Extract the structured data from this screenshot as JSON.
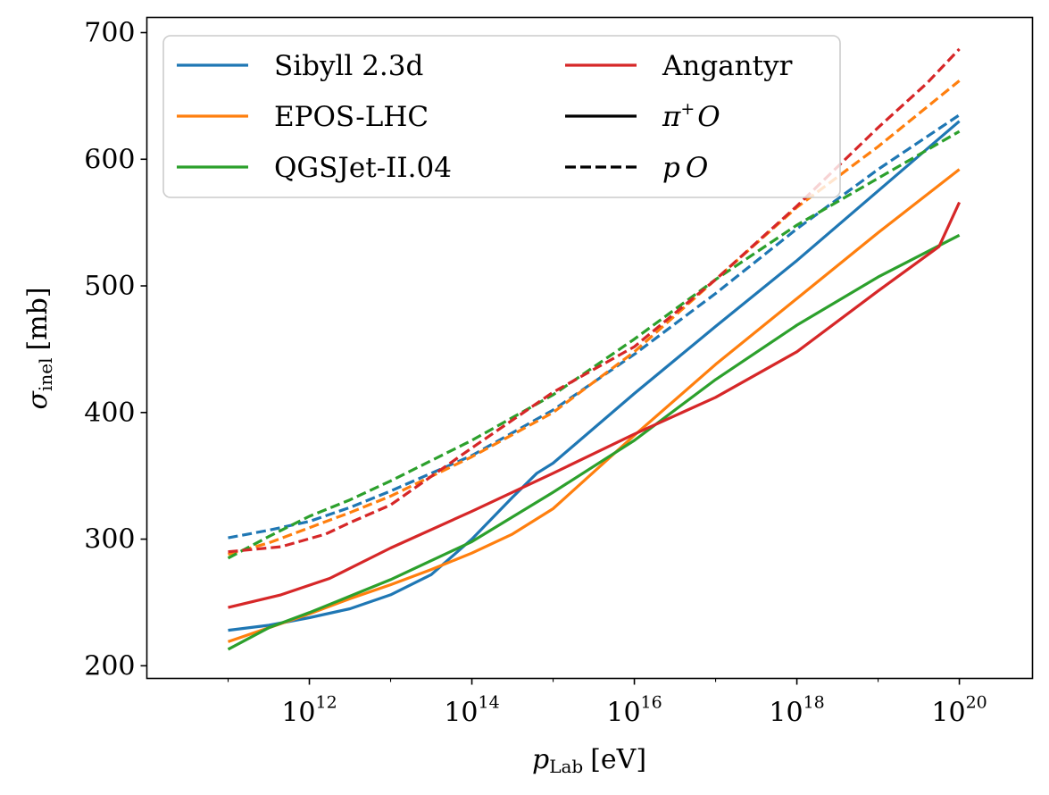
{
  "chart_data": {
    "type": "line",
    "xscale": "log10",
    "xlabel": {
      "main": "p",
      "sub": "Lab",
      "unit": "[eV]"
    },
    "ylabel": {
      "main": "σ",
      "sub": "inel",
      "unit": "[mb]"
    },
    "xlim": [
      10.0,
      20.9
    ],
    "ylim": [
      190,
      712
    ],
    "x_ticks": [
      {
        "base": "10",
        "exp": "12",
        "value": 12
      },
      {
        "base": "10",
        "exp": "14",
        "value": 14
      },
      {
        "base": "10",
        "exp": "16",
        "value": 16
      },
      {
        "base": "10",
        "exp": "18",
        "value": 18
      },
      {
        "base": "10",
        "exp": "20",
        "value": 20
      }
    ],
    "y_ticks": [
      "200",
      "300",
      "400",
      "500",
      "600",
      "700"
    ],
    "y_tick_values": [
      200,
      300,
      400,
      500,
      600,
      700
    ],
    "grid": false,
    "legend_position": "top-left",
    "legend": [
      {
        "label": "Sibyll 2.3d",
        "color": "#1f77b4",
        "style": "solid"
      },
      {
        "label": "EPOS-LHC",
        "color": "#ff7f0e",
        "style": "solid"
      },
      {
        "label": "QGSJet-II.04",
        "color": "#2ca02c",
        "style": "solid"
      },
      {
        "label": "Angantyr",
        "color": "#d62728",
        "style": "solid"
      },
      {
        "label": "π⁺O",
        "main": "π",
        "sup": "+",
        "tail": "O",
        "color": "#000000",
        "style": "solid"
      },
      {
        "label": "pO",
        "main": "p",
        "tail": "O",
        "color": "#000000",
        "style": "dashed"
      }
    ],
    "series": [
      {
        "name": "Sibyll 2.3d π+O",
        "color": "#1f77b4",
        "style": "solid",
        "x": [
          11,
          11.5,
          12,
          12.5,
          13,
          13.5,
          14,
          14.5,
          14.8,
          15,
          16,
          17,
          18,
          19,
          20
        ],
        "y": [
          228,
          232,
          238,
          245,
          256,
          272,
          300,
          333,
          352,
          360,
          415,
          468,
          520,
          575,
          630
        ]
      },
      {
        "name": "EPOS-LHC π+O",
        "color": "#ff7f0e",
        "style": "solid",
        "x": [
          11,
          11.5,
          12,
          12.5,
          13,
          13.5,
          14,
          14.5,
          15,
          16,
          17,
          18,
          19,
          20
        ],
        "y": [
          219,
          230,
          241,
          253,
          264,
          276,
          289,
          304,
          324,
          382,
          438,
          490,
          542,
          592
        ]
      },
      {
        "name": "QGSJet-II.04 π+O",
        "color": "#2ca02c",
        "style": "solid",
        "x": [
          11,
          11.5,
          12,
          12.5,
          13,
          14,
          15,
          16,
          17,
          18,
          19,
          20
        ],
        "y": [
          213,
          230,
          242,
          255,
          268,
          298,
          337,
          378,
          426,
          469,
          507,
          540
        ]
      },
      {
        "name": "Angantyr π+O",
        "color": "#d62728",
        "style": "solid",
        "x": [
          11,
          11.65,
          12.25,
          13,
          14,
          15,
          16,
          17,
          18,
          19,
          19.75,
          20
        ],
        "y": [
          246,
          256,
          269,
          293,
          322,
          352,
          383,
          412,
          448,
          496,
          531,
          566
        ]
      },
      {
        "name": "Sibyll 2.3d pO",
        "color": "#1f77b4",
        "style": "dashed",
        "x": [
          11,
          11.5,
          12,
          12.5,
          13,
          14,
          15,
          16,
          17,
          18,
          19,
          20
        ],
        "y": [
          301,
          307,
          314,
          325,
          338,
          366,
          402,
          446,
          494,
          545,
          592,
          635
        ]
      },
      {
        "name": "EPOS-LHC pO",
        "color": "#ff7f0e",
        "style": "dashed",
        "x": [
          11,
          11.5,
          12,
          12.5,
          13,
          14,
          15,
          16,
          17,
          18,
          19,
          20
        ],
        "y": [
          288,
          297,
          309,
          321,
          334,
          365,
          400,
          448,
          505,
          562,
          610,
          662
        ]
      },
      {
        "name": "QGSJet-II.04 pO",
        "color": "#2ca02c",
        "style": "dashed",
        "x": [
          11,
          11.5,
          12,
          12.5,
          13,
          14,
          15,
          16,
          17,
          18,
          19,
          20
        ],
        "y": [
          285,
          302,
          318,
          331,
          346,
          378,
          414,
          458,
          505,
          548,
          585,
          622
        ]
      },
      {
        "name": "Angantyr pO",
        "color": "#d62728",
        "style": "dashed",
        "x": [
          11,
          11.65,
          12.2,
          12.5,
          13,
          14,
          15,
          16,
          17,
          18,
          19,
          19.6,
          20
        ],
        "y": [
          290,
          294,
          304,
          313,
          327,
          372,
          416,
          452,
          505,
          563,
          625,
          660,
          687
        ]
      }
    ]
  }
}
